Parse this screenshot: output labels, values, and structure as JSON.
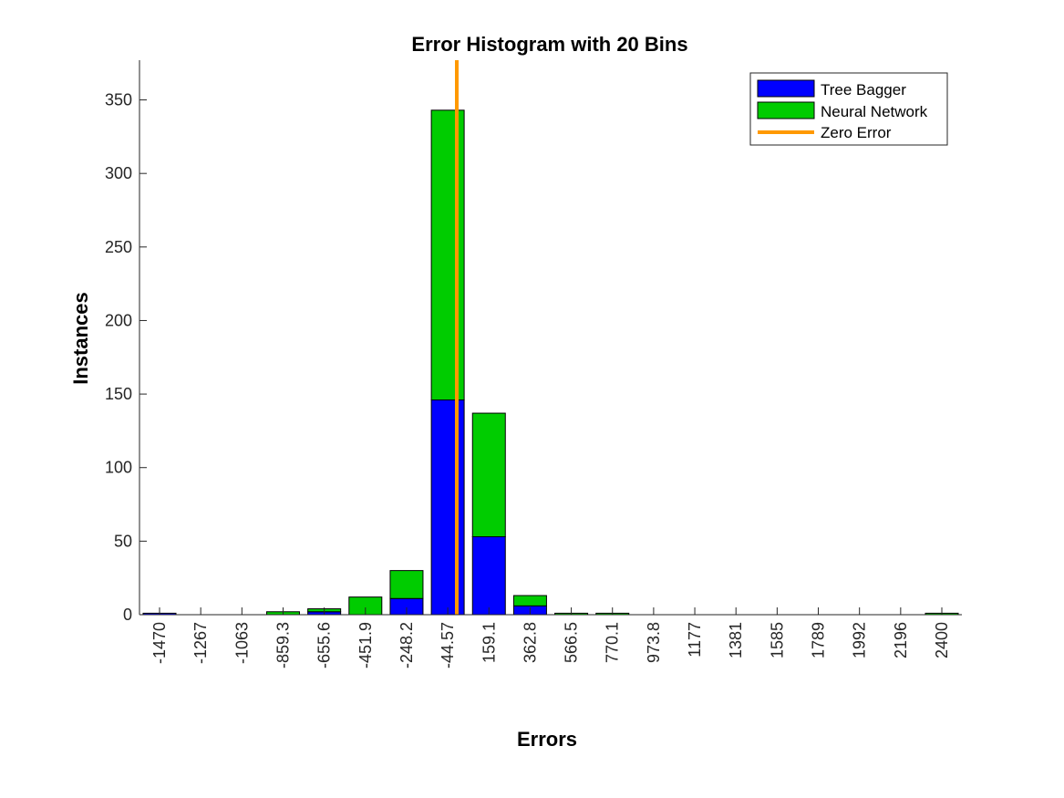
{
  "chart_data": {
    "type": "bar",
    "stacked": true,
    "title": "Error Histogram with 20 Bins",
    "xlabel": "Errors",
    "ylabel": "Instances",
    "categories": [
      "-1470",
      "-1267",
      "-1063",
      "-859.3",
      "-655.6",
      "-451.9",
      "-248.2",
      "-44.57",
      "159.1",
      "362.8",
      "566.5",
      "770.1",
      "973.8",
      "1177",
      "1381",
      "1585",
      "1789",
      "1992",
      "2196",
      "2400"
    ],
    "series": [
      {
        "name": "Tree Bagger",
        "color": "#0000ff",
        "values": [
          1,
          0,
          0,
          0,
          2,
          0,
          11,
          146,
          53,
          6,
          0,
          0,
          0,
          0,
          0,
          0,
          0,
          0,
          0,
          0
        ]
      },
      {
        "name": "Neural Network",
        "color": "#00cc00",
        "values": [
          0,
          0,
          0,
          2,
          2,
          12,
          19,
          197,
          84,
          7,
          1,
          1,
          0,
          0,
          0,
          0,
          0,
          0,
          0,
          1
        ]
      }
    ],
    "zero_line": {
      "name": "Zero Error",
      "color": "#ff9900",
      "x": 0
    },
    "ylim": [
      0,
      377
    ],
    "yticks": [
      0,
      50,
      100,
      150,
      200,
      250,
      300,
      350
    ],
    "grid": false,
    "legend_position": "top-right"
  }
}
